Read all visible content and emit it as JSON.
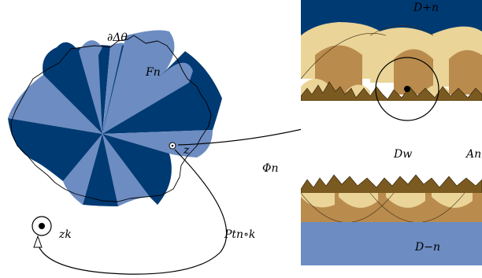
{
  "figure": {
    "labels": {
      "boundary": "∂Δθ",
      "fundamental_domain": "Fn",
      "point_z": "z",
      "point_zk": "zk",
      "map_phi": "Φn",
      "map_p": "Ptn∘k",
      "upper_domain": "D+n",
      "lower_domain": "D−n",
      "disk_w": "Dw",
      "annulus": "An"
    }
  },
  "colors": {
    "dark_blue": "#003a73",
    "light_blue": "#6c8cc2",
    "sand_light": "#ead497",
    "sand_dark": "#b98b4d",
    "outline": "#000000"
  }
}
